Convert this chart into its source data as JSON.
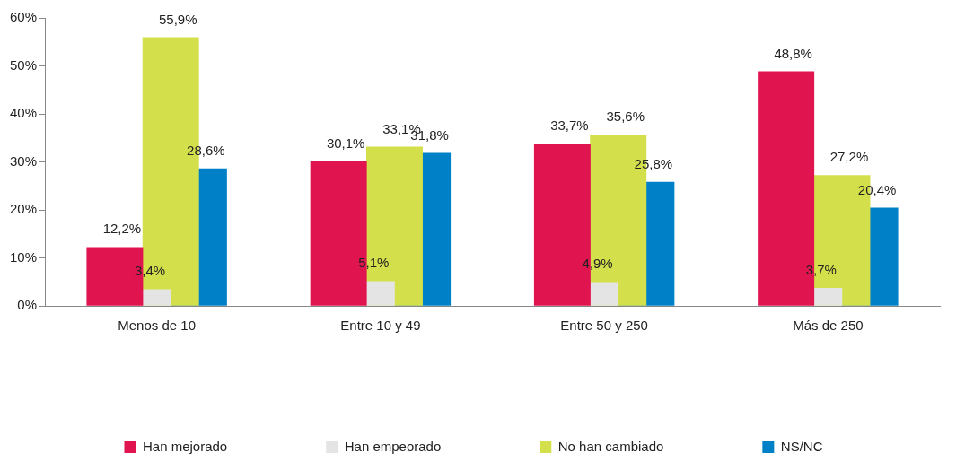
{
  "chart_data": {
    "type": "bar",
    "categories": [
      "Menos de 10",
      "Entre 10 y 49",
      "Entre 50 y 250",
      "Más de 250"
    ],
    "series": [
      {
        "name": "Han mejorado",
        "color": "#e0144f",
        "values": [
          12.2,
          30.1,
          33.7,
          48.8
        ],
        "value_labels": [
          "12,2%",
          "30,1%",
          "33,7%",
          "48,8%"
        ]
      },
      {
        "name": "Han empeorado",
        "color": "#e4e4e4",
        "values": [
          3.4,
          5.1,
          4.9,
          3.7
        ],
        "value_labels": [
          "3,4%",
          "5,1%",
          "4,9%",
          "3,7%"
        ]
      },
      {
        "name": "No han cambiado",
        "color": "#d4e04b",
        "values": [
          55.9,
          33.1,
          35.6,
          27.2
        ],
        "value_labels": [
          "55,9%",
          "33,1%",
          "35,6%",
          "27,2%"
        ]
      },
      {
        "name": "NS/NC",
        "color": "#0080c6",
        "values": [
          28.6,
          31.8,
          25.8,
          20.4
        ],
        "value_labels": [
          "28,6%",
          "31,8%",
          "25,8%",
          "20,4%"
        ]
      }
    ],
    "ylim": [
      0,
      60
    ],
    "yticks": [
      {
        "value": 0,
        "label": "0%"
      },
      {
        "value": 10,
        "label": "10%"
      },
      {
        "value": 20,
        "label": "20%"
      },
      {
        "value": 30,
        "label": "30%"
      },
      {
        "value": 40,
        "label": "40%"
      },
      {
        "value": 50,
        "label": "50%"
      },
      {
        "value": 60,
        "label": "60%"
      }
    ],
    "grid": false,
    "legend": "bottom"
  }
}
